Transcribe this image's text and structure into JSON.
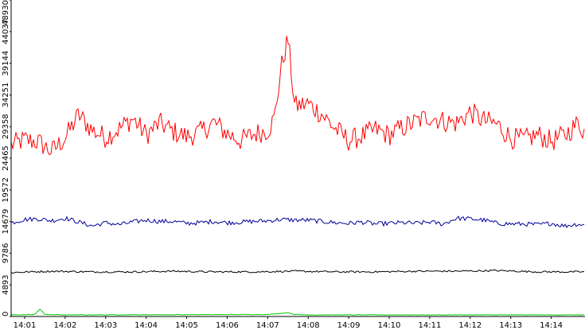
{
  "chart_data": {
    "type": "line",
    "title": "",
    "xlabel": "",
    "ylabel": "",
    "ylim": [
      0,
      48930
    ],
    "yticks": [
      "0",
      "4893",
      "9786",
      "14679",
      "19572",
      "24465",
      "29358",
      "34251",
      "39144",
      "44037",
      "48930"
    ],
    "xticks": [
      "14:01",
      "14:02",
      "14:03",
      "14:04",
      "14:05",
      "14:06",
      "14:07",
      "14:08",
      "14:09",
      "14:10",
      "14:11",
      "14:12",
      "14:13",
      "14:14"
    ],
    "xrange": [
      "14:00:40",
      "14:14:50"
    ],
    "grid": false,
    "legend": "none",
    "series": [
      {
        "color": "#ff0000",
        "x": [
          "14:00:40",
          "14:01:00",
          "14:01:20",
          "14:01:40",
          "14:02:00",
          "14:02:20",
          "14:02:40",
          "14:03:00",
          "14:03:20",
          "14:03:40",
          "14:04:00",
          "14:04:20",
          "14:04:40",
          "14:05:00",
          "14:05:20",
          "14:05:40",
          "14:06:00",
          "14:06:20",
          "14:06:40",
          "14:07:00",
          "14:07:10",
          "14:07:20",
          "14:07:30",
          "14:07:40",
          "14:08:00",
          "14:08:20",
          "14:08:40",
          "14:09:00",
          "14:09:20",
          "14:09:40",
          "14:10:00",
          "14:10:20",
          "14:10:40",
          "14:11:00",
          "14:11:20",
          "14:11:40",
          "14:12:00",
          "14:12:20",
          "14:12:40",
          "14:13:00",
          "14:13:20",
          "14:13:40",
          "14:14:00",
          "14:14:20",
          "14:14:40",
          "14:14:50"
        ],
        "values": [
          26500,
          27300,
          27000,
          25500,
          27600,
          31200,
          28800,
          27700,
          29000,
          30600,
          28100,
          29900,
          28600,
          27800,
          28500,
          30000,
          28300,
          27200,
          28200,
          28800,
          30600,
          38500,
          43000,
          32500,
          32900,
          31300,
          29000,
          27200,
          27900,
          28900,
          28000,
          29200,
          30100,
          31000,
          30200,
          29900,
          31600,
          30300,
          29700,
          27600,
          27300,
          28100,
          27100,
          28000,
          29900,
          28500
        ]
      },
      {
        "color": "#000099",
        "x": [
          "14:00:40",
          "14:01:00",
          "14:01:20",
          "14:01:40",
          "14:02:00",
          "14:02:20",
          "14:02:40",
          "14:03:00",
          "14:03:20",
          "14:03:40",
          "14:04:00",
          "14:04:20",
          "14:04:40",
          "14:05:00",
          "14:05:20",
          "14:05:40",
          "14:06:00",
          "14:06:20",
          "14:06:40",
          "14:07:00",
          "14:07:20",
          "14:07:40",
          "14:08:00",
          "14:08:20",
          "14:08:40",
          "14:09:00",
          "14:09:20",
          "14:09:40",
          "14:10:00",
          "14:10:20",
          "14:10:40",
          "14:11:00",
          "14:11:20",
          "14:11:40",
          "14:12:00",
          "14:12:20",
          "14:12:40",
          "14:13:00",
          "14:13:20",
          "14:13:40",
          "14:14:00",
          "14:14:20",
          "14:14:40",
          "14:14:50"
        ],
        "values": [
          14500,
          15000,
          15100,
          14800,
          15200,
          14600,
          14000,
          14500,
          14200,
          14600,
          14900,
          14700,
          14700,
          14400,
          14500,
          14700,
          14500,
          14600,
          14700,
          14800,
          15000,
          14900,
          14900,
          14700,
          14500,
          14400,
          14600,
          14300,
          14400,
          14500,
          14400,
          14600,
          14300,
          15200,
          15100,
          14900,
          14400,
          14300,
          14300,
          14200,
          14400,
          14000,
          14300,
          14100
        ]
      },
      {
        "color": "#000000",
        "x": [
          "14:00:40",
          "14:01:40",
          "14:02:40",
          "14:03:40",
          "14:04:40",
          "14:05:40",
          "14:06:40",
          "14:07:40",
          "14:08:40",
          "14:09:40",
          "14:10:40",
          "14:11:40",
          "14:12:40",
          "14:13:40",
          "14:14:40",
          "14:14:50"
        ],
        "values": [
          6800,
          7000,
          6900,
          6900,
          7000,
          6900,
          6900,
          7000,
          6900,
          6900,
          7000,
          7000,
          7100,
          6900,
          6900,
          6900
        ]
      },
      {
        "color": "#00cc00",
        "x": [
          "14:00:40",
          "14:01:15",
          "14:01:23",
          "14:01:30",
          "14:02:00",
          "14:07:00",
          "14:07:30",
          "14:07:40",
          "14:08:00",
          "14:14:50"
        ],
        "values": [
          250,
          300,
          1200,
          300,
          250,
          300,
          600,
          300,
          250,
          250
        ]
      }
    ]
  }
}
